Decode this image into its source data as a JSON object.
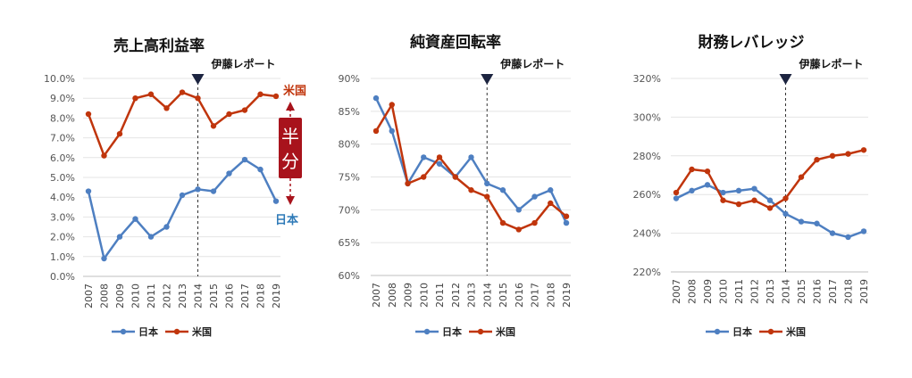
{
  "chart_data": [
    {
      "type": "line",
      "title": "売上高利益率",
      "categories": [
        "2007",
        "2008",
        "2009",
        "2010",
        "2011",
        "2012",
        "2013",
        "2014",
        "2015",
        "2016",
        "2017",
        "2018",
        "2019"
      ],
      "series": [
        {
          "name": "日本",
          "color": "#4e7fc1",
          "values": [
            4.3,
            0.9,
            2.0,
            2.9,
            2.0,
            2.5,
            4.1,
            4.4,
            4.3,
            5.2,
            5.9,
            5.4,
            3.8
          ]
        },
        {
          "name": "米国",
          "color": "#c0350c",
          "values": [
            8.2,
            6.1,
            7.2,
            9.0,
            9.2,
            8.5,
            9.3,
            9.0,
            7.6,
            8.2,
            8.4,
            9.2,
            9.1
          ]
        }
      ],
      "yticks": [
        "0.0%",
        "1.0%",
        "2.0%",
        "3.0%",
        "4.0%",
        "5.0%",
        "6.0%",
        "7.0%",
        "8.0%",
        "9.0%",
        "10.0%"
      ],
      "ylim": [
        0,
        10
      ],
      "marker_label": "伊藤レポート",
      "marker_year": "2014",
      "annotations": {
        "us_label": "米国",
        "jp_label": "日本",
        "half_label": "半分",
        "half_color": "#a8131c"
      },
      "legend_position": "bottom"
    },
    {
      "type": "line",
      "title": "純資産回転率",
      "categories": [
        "2007",
        "2008",
        "2009",
        "2010",
        "2011",
        "2012",
        "2013",
        "2014",
        "2015",
        "2016",
        "2017",
        "2018",
        "2019"
      ],
      "series": [
        {
          "name": "日本",
          "color": "#4e7fc1",
          "values": [
            87,
            82,
            74,
            78,
            77,
            75,
            78,
            74,
            73,
            70,
            72,
            73,
            68
          ]
        },
        {
          "name": "米国",
          "color": "#c0350c",
          "values": [
            82,
            86,
            74,
            75,
            78,
            75,
            73,
            72,
            68,
            67,
            68,
            71,
            69
          ]
        }
      ],
      "yticks": [
        "60%",
        "65%",
        "70%",
        "75%",
        "80%",
        "85%",
        "90%"
      ],
      "ylim": [
        60,
        90
      ],
      "marker_label": "伊藤レポート",
      "marker_year": "2014",
      "legend": [
        "日本",
        "米国"
      ],
      "legend_position": "bottom"
    },
    {
      "type": "line",
      "title": "財務レバレッジ",
      "categories": [
        "2007",
        "2008",
        "2009",
        "2010",
        "2011",
        "2012",
        "2013",
        "2014",
        "2015",
        "2016",
        "2017",
        "2018",
        "2019"
      ],
      "series": [
        {
          "name": "日本",
          "color": "#4e7fc1",
          "values": [
            258,
            262,
            265,
            261,
            262,
            263,
            257,
            250,
            246,
            245,
            240,
            238,
            241
          ]
        },
        {
          "name": "米国",
          "color": "#c0350c",
          "values": [
            261,
            273,
            272,
            257,
            255,
            257,
            253,
            258,
            269,
            278,
            280,
            281,
            283
          ]
        }
      ],
      "yticks": [
        "220%",
        "240%",
        "260%",
        "280%",
        "300%",
        "320%"
      ],
      "ylim": [
        220,
        320
      ],
      "marker_label": "伊藤レポート",
      "marker_year": "2014",
      "legend": [
        "日本",
        "米国"
      ],
      "legend_position": "bottom"
    }
  ]
}
